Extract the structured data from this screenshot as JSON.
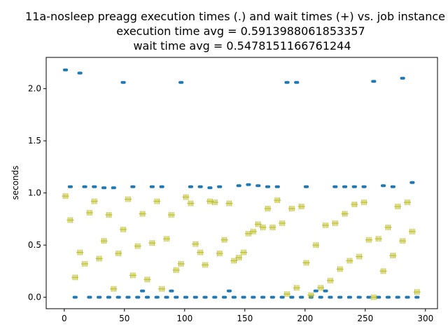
{
  "chart_data": {
    "type": "scatter",
    "title_lines": [
      "11a-nosleep preagg execution times (.) and wait times (+) vs. job instance",
      "execution time avg = 0.5913988061853357",
      "wait time avg = 0.5478151166761244"
    ],
    "xlabel": "",
    "ylabel": "seconds",
    "xlim": [
      -15,
      310
    ],
    "ylim": [
      -0.11,
      2.3
    ],
    "xticks": [
      0,
      50,
      100,
      150,
      200,
      250,
      300
    ],
    "yticks": [
      0.0,
      0.5,
      1.0,
      1.5,
      2.0
    ],
    "xtick_labels": [
      "0",
      "50",
      "100",
      "150",
      "200",
      "250",
      "300"
    ],
    "ytick_labels": [
      "0.0",
      "0.5",
      "1.0",
      "1.5",
      "2.0"
    ],
    "grid": false,
    "series": [
      {
        "marker": ".",
        "color": "#1f77b4",
        "points": [
          [
            1,
            2.18
          ],
          [
            5,
            1.06
          ],
          [
            9,
            0.0
          ],
          [
            13,
            2.15
          ],
          [
            17,
            1.06
          ],
          [
            21,
            0.0
          ],
          [
            25,
            1.06
          ],
          [
            29,
            0.0
          ],
          [
            33,
            1.05
          ],
          [
            37,
            0.0
          ],
          [
            41,
            1.05
          ],
          [
            45,
            0.0
          ],
          [
            49,
            2.06
          ],
          [
            53,
            0.0
          ],
          [
            57,
            1.06
          ],
          [
            61,
            0.0
          ],
          [
            65,
            0.06
          ],
          [
            69,
            0.0
          ],
          [
            73,
            1.06
          ],
          [
            77,
            0.0
          ],
          [
            81,
            1.06
          ],
          [
            85,
            0.0
          ],
          [
            89,
            0.06
          ],
          [
            93,
            0.0
          ],
          [
            97,
            2.06
          ],
          [
            101,
            0.0
          ],
          [
            105,
            1.06
          ],
          [
            109,
            0.0
          ],
          [
            113,
            1.06
          ],
          [
            117,
            0.0
          ],
          [
            121,
            1.05
          ],
          [
            125,
            0.0
          ],
          [
            129,
            1.06
          ],
          [
            133,
            0.0
          ],
          [
            137,
            0.06
          ],
          [
            141,
            0.0
          ],
          [
            145,
            1.07
          ],
          [
            149,
            0.0
          ],
          [
            153,
            1.08
          ],
          [
            157,
            0.0
          ],
          [
            161,
            1.07
          ],
          [
            165,
            0.0
          ],
          [
            169,
            1.06
          ],
          [
            173,
            0.0
          ],
          [
            177,
            1.06
          ],
          [
            181,
            0.0
          ],
          [
            185,
            2.06
          ],
          [
            189,
            0.0
          ],
          [
            193,
            2.06
          ],
          [
            197,
            0.0
          ],
          [
            201,
            1.06
          ],
          [
            205,
            0.0
          ],
          [
            209,
            0.06
          ],
          [
            213,
            0.0
          ],
          [
            217,
            0.06
          ],
          [
            221,
            0.0
          ],
          [
            225,
            1.06
          ],
          [
            229,
            0.0
          ],
          [
            233,
            1.06
          ],
          [
            237,
            0.0
          ],
          [
            241,
            1.06
          ],
          [
            245,
            0.0
          ],
          [
            249,
            1.06
          ],
          [
            253,
            0.0
          ],
          [
            257,
            2.07
          ],
          [
            261,
            0.0
          ],
          [
            265,
            1.07
          ],
          [
            269,
            0.0
          ],
          [
            273,
            1.06
          ],
          [
            277,
            0.0
          ],
          [
            281,
            2.1
          ],
          [
            285,
            0.0
          ],
          [
            289,
            1.1
          ],
          [
            293,
            0.0
          ]
        ]
      },
      {
        "marker": "+",
        "color": "#bcbd22",
        "points": [
          [
            1,
            0.97
          ],
          [
            5,
            0.74
          ],
          [
            9,
            0.19
          ],
          [
            13,
            0.43
          ],
          [
            17,
            0.32
          ],
          [
            21,
            0.81
          ],
          [
            25,
            0.92
          ],
          [
            29,
            0.37
          ],
          [
            33,
            0.54
          ],
          [
            37,
            0.79
          ],
          [
            41,
            0.08
          ],
          [
            45,
            0.42
          ],
          [
            49,
            0.65
          ],
          [
            53,
            0.94
          ],
          [
            57,
            0.21
          ],
          [
            61,
            0.49
          ],
          [
            65,
            0.8
          ],
          [
            69,
            0.17
          ],
          [
            73,
            0.52
          ],
          [
            77,
            0.92
          ],
          [
            81,
            0.08
          ],
          [
            85,
            0.56
          ],
          [
            89,
            0.79
          ],
          [
            93,
            0.26
          ],
          [
            97,
            0.32
          ],
          [
            101,
            0.96
          ],
          [
            105,
            0.9
          ],
          [
            109,
            0.51
          ],
          [
            113,
            0.43
          ],
          [
            117,
            0.31
          ],
          [
            121,
            0.92
          ],
          [
            125,
            0.91
          ],
          [
            129,
            0.42
          ],
          [
            133,
            0.55
          ],
          [
            137,
            0.9
          ],
          [
            141,
            0.35
          ],
          [
            145,
            0.38
          ],
          [
            149,
            0.43
          ],
          [
            153,
            0.61
          ],
          [
            157,
            0.63
          ],
          [
            161,
            0.7
          ],
          [
            165,
            0.67
          ],
          [
            169,
            0.85
          ],
          [
            173,
            0.67
          ],
          [
            177,
            0.93
          ],
          [
            181,
            0.71
          ],
          [
            185,
            0.03
          ],
          [
            189,
            0.85
          ],
          [
            193,
            0.09
          ],
          [
            197,
            0.87
          ],
          [
            201,
            0.33
          ],
          [
            205,
            0.02
          ],
          [
            209,
            0.5
          ],
          [
            213,
            0.09
          ],
          [
            217,
            0.69
          ],
          [
            221,
            0.16
          ],
          [
            225,
            0.71
          ],
          [
            229,
            0.27
          ],
          [
            233,
            0.8
          ],
          [
            237,
            0.35
          ],
          [
            241,
            0.89
          ],
          [
            245,
            0.39
          ],
          [
            249,
            0.91
          ],
          [
            253,
            0.55
          ],
          [
            257,
            0.0
          ],
          [
            261,
            0.56
          ],
          [
            265,
            0.25
          ],
          [
            269,
            0.67
          ],
          [
            273,
            0.4
          ],
          [
            277,
            0.87
          ],
          [
            281,
            0.54
          ],
          [
            285,
            0.91
          ],
          [
            289,
            0.63
          ],
          [
            293,
            0.05
          ]
        ]
      }
    ]
  }
}
